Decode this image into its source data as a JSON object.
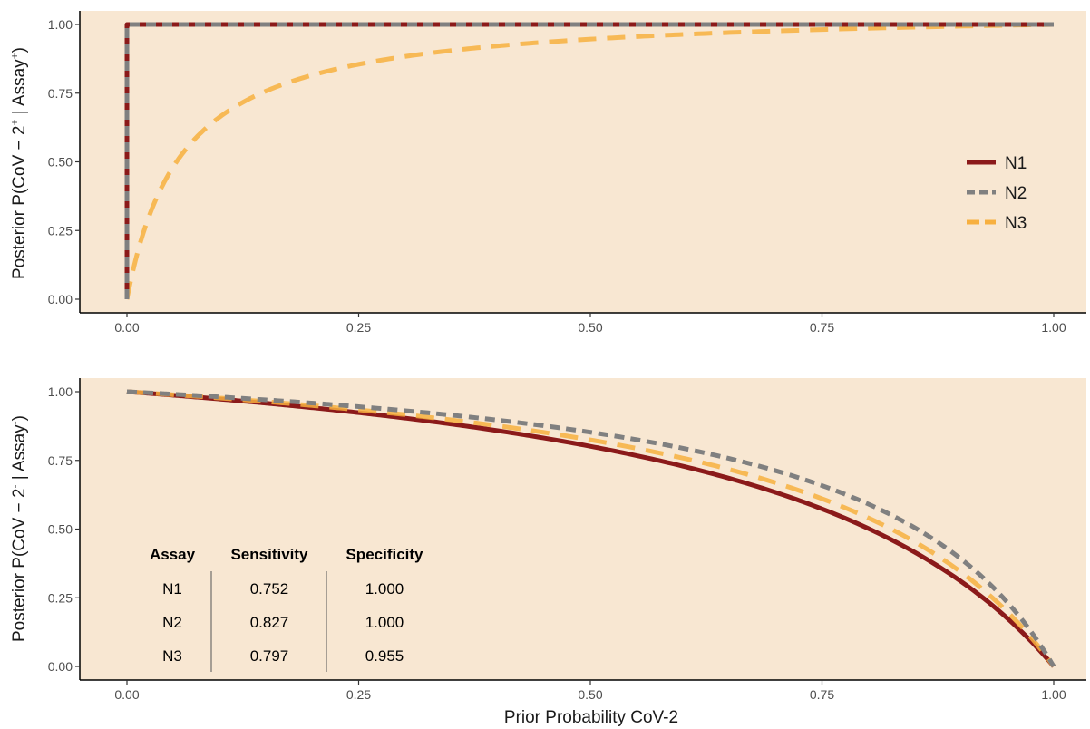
{
  "colors": {
    "panel_bg": "#F8E7D2",
    "N1": "#8B1A1A",
    "N2": "#808080",
    "N3": "#F7B040"
  },
  "chart_data": [
    {
      "type": "line",
      "ylabel": "Posterior P(CoV − 2+ | Assay+)",
      "xlim": [
        0,
        1
      ],
      "ylim": [
        0,
        1
      ],
      "x_ticks": [
        "0.00",
        "0.25",
        "0.50",
        "0.75",
        "1.00"
      ],
      "y_ticks": [
        "0.00",
        "0.25",
        "0.50",
        "0.75",
        "1.00"
      ],
      "grid": false,
      "legend_position": "right",
      "series": [
        {
          "name": "N1",
          "sensitivity": 0.752,
          "specificity": 1.0,
          "style": "solid"
        },
        {
          "name": "N2",
          "sensitivity": 0.827,
          "specificity": 1.0,
          "style": "dashed"
        },
        {
          "name": "N3",
          "sensitivity": 0.797,
          "specificity": 0.955,
          "style": "dashed"
        }
      ]
    },
    {
      "type": "line",
      "xlabel": "Prior Probability CoV-2",
      "ylabel": "Posterior P(CoV − 2- | Assay-)",
      "xlim": [
        0,
        1
      ],
      "ylim": [
        0,
        1
      ],
      "x_ticks": [
        "0.00",
        "0.25",
        "0.50",
        "0.75",
        "1.00"
      ],
      "y_ticks": [
        "0.00",
        "0.25",
        "0.50",
        "0.75",
        "1.00"
      ],
      "grid": false,
      "table": {
        "headers": [
          "Assay",
          "Sensitivity",
          "Specificity"
        ],
        "rows": [
          [
            "N1",
            "0.752",
            "1.000"
          ],
          [
            "N2",
            "0.827",
            "1.000"
          ],
          [
            "N3",
            "0.797",
            "0.955"
          ]
        ]
      },
      "series": [
        {
          "name": "N1",
          "sensitivity": 0.752,
          "specificity": 1.0,
          "style": "solid"
        },
        {
          "name": "N2",
          "sensitivity": 0.827,
          "specificity": 1.0,
          "style": "dashed"
        },
        {
          "name": "N3",
          "sensitivity": 0.797,
          "specificity": 0.955,
          "style": "dashed"
        }
      ]
    }
  ]
}
